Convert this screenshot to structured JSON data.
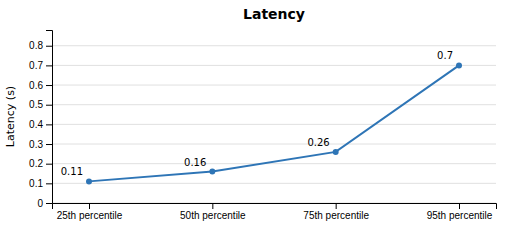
{
  "chart_data": {
    "type": "line",
    "title": "Latency",
    "categories": [
      "25th percentile",
      "50th percentile",
      "75th percentile",
      "95th percentile"
    ],
    "values": [
      0.11,
      0.16,
      0.26,
      0.7
    ],
    "data_labels": true,
    "ylabel": "Latency (s)",
    "ylim": [
      0,
      0.88
    ],
    "yticks": [
      0,
      0.1,
      0.2,
      0.3,
      0.4,
      0.5,
      0.6,
      0.7,
      0.8
    ],
    "color": "#2E75B6",
    "marker": "circle",
    "grid": true
  }
}
